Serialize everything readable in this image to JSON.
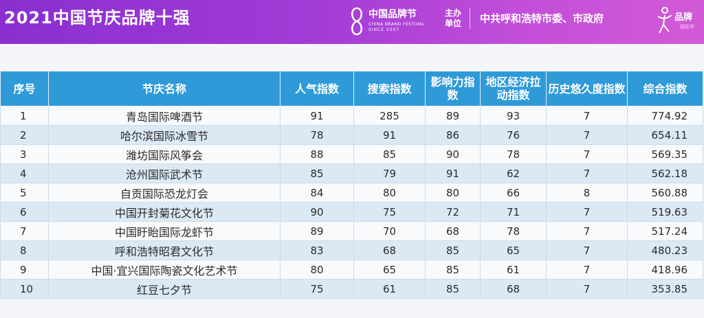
{
  "header": {
    "title": "2021中国节庆品牌十强",
    "logo": {
      "name": "中国品牌节",
      "english": "CHINA BRAND FESTIVAL",
      "since": "SINCE 2007"
    },
    "host_label": "主办单位",
    "host_value": "中共呼和浩特市委、市政府",
    "brand2": {
      "name": "品牌",
      "sub": "冠化中"
    },
    "colors": {
      "banner_start": "#8a2fd0",
      "banner_end": "#d35ad6",
      "header_bg": "#2f9ad8",
      "row_alt": "#dbe9f4"
    }
  },
  "table": {
    "columns": [
      "序号",
      "节庆名称",
      "人气指数",
      "搜索指数",
      "影响力指数",
      "地区经济拉动指数",
      "历史悠久度指数",
      "综合指数"
    ],
    "rows": [
      [
        "1",
        "青岛国际啤酒节",
        "91",
        "285",
        "89",
        "93",
        "7",
        "774.92"
      ],
      [
        "2",
        "哈尔滨国际冰雪节",
        "78",
        "91",
        "86",
        "76",
        "7",
        "654.11"
      ],
      [
        "3",
        "潍坊国际风筝会",
        "88",
        "85",
        "90",
        "78",
        "7",
        "569.35"
      ],
      [
        "4",
        "沧州国际武术节",
        "85",
        "79",
        "91",
        "62",
        "7",
        "562.18"
      ],
      [
        "5",
        "自贡国际恐龙灯会",
        "84",
        "80",
        "80",
        "66",
        "8",
        "560.88"
      ],
      [
        "6",
        "中国开封菊花文化节",
        "90",
        "75",
        "72",
        "71",
        "7",
        "519.63"
      ],
      [
        "7",
        "中国盱眙国际龙虾节",
        "89",
        "70",
        "68",
        "78",
        "7",
        "517.24"
      ],
      [
        "8",
        "呼和浩特昭君文化节",
        "83",
        "68",
        "85",
        "65",
        "7",
        "480.23"
      ],
      [
        "9",
        "中国·宜兴国际陶瓷文化艺术节",
        "80",
        "65",
        "85",
        "61",
        "7",
        "418.96"
      ],
      [
        "10",
        "红豆七夕节",
        "75",
        "61",
        "85",
        "68",
        "7",
        "353.85"
      ]
    ]
  }
}
